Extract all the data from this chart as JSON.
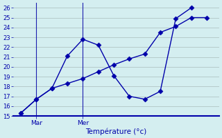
{
  "line1_x": [
    0,
    1,
    2,
    3,
    4,
    5,
    6,
    7,
    8,
    9,
    10,
    11
  ],
  "line1_y": [
    15.3,
    16.7,
    17.8,
    21.1,
    22.8,
    22.2,
    19.1,
    17.0,
    16.7,
    17.5,
    24.9,
    26.0
  ],
  "line2_x": [
    0,
    1,
    2,
    3,
    4,
    5,
    6,
    7,
    8,
    9,
    10,
    11,
    12
  ],
  "line2_y": [
    15.3,
    16.7,
    17.8,
    18.3,
    18.8,
    19.5,
    20.2,
    20.8,
    21.3,
    23.5,
    24.1,
    25.0,
    25.0
  ],
  "ylim": [
    15,
    26.5
  ],
  "yticks": [
    15,
    16,
    17,
    18,
    19,
    20,
    21,
    22,
    23,
    24,
    25,
    26
  ],
  "xlim": [
    -0.5,
    12.8
  ],
  "xtick_positions": [
    1,
    4
  ],
  "xtick_labels": [
    "Mar",
    "Mer"
  ],
  "vline_positions": [
    1,
    4
  ],
  "xlabel": "Température (°c)",
  "line_color": "#0000AA",
  "bg_color": "#D4EEF0",
  "grid_color": "#AABCBC",
  "markersize": 3.5
}
